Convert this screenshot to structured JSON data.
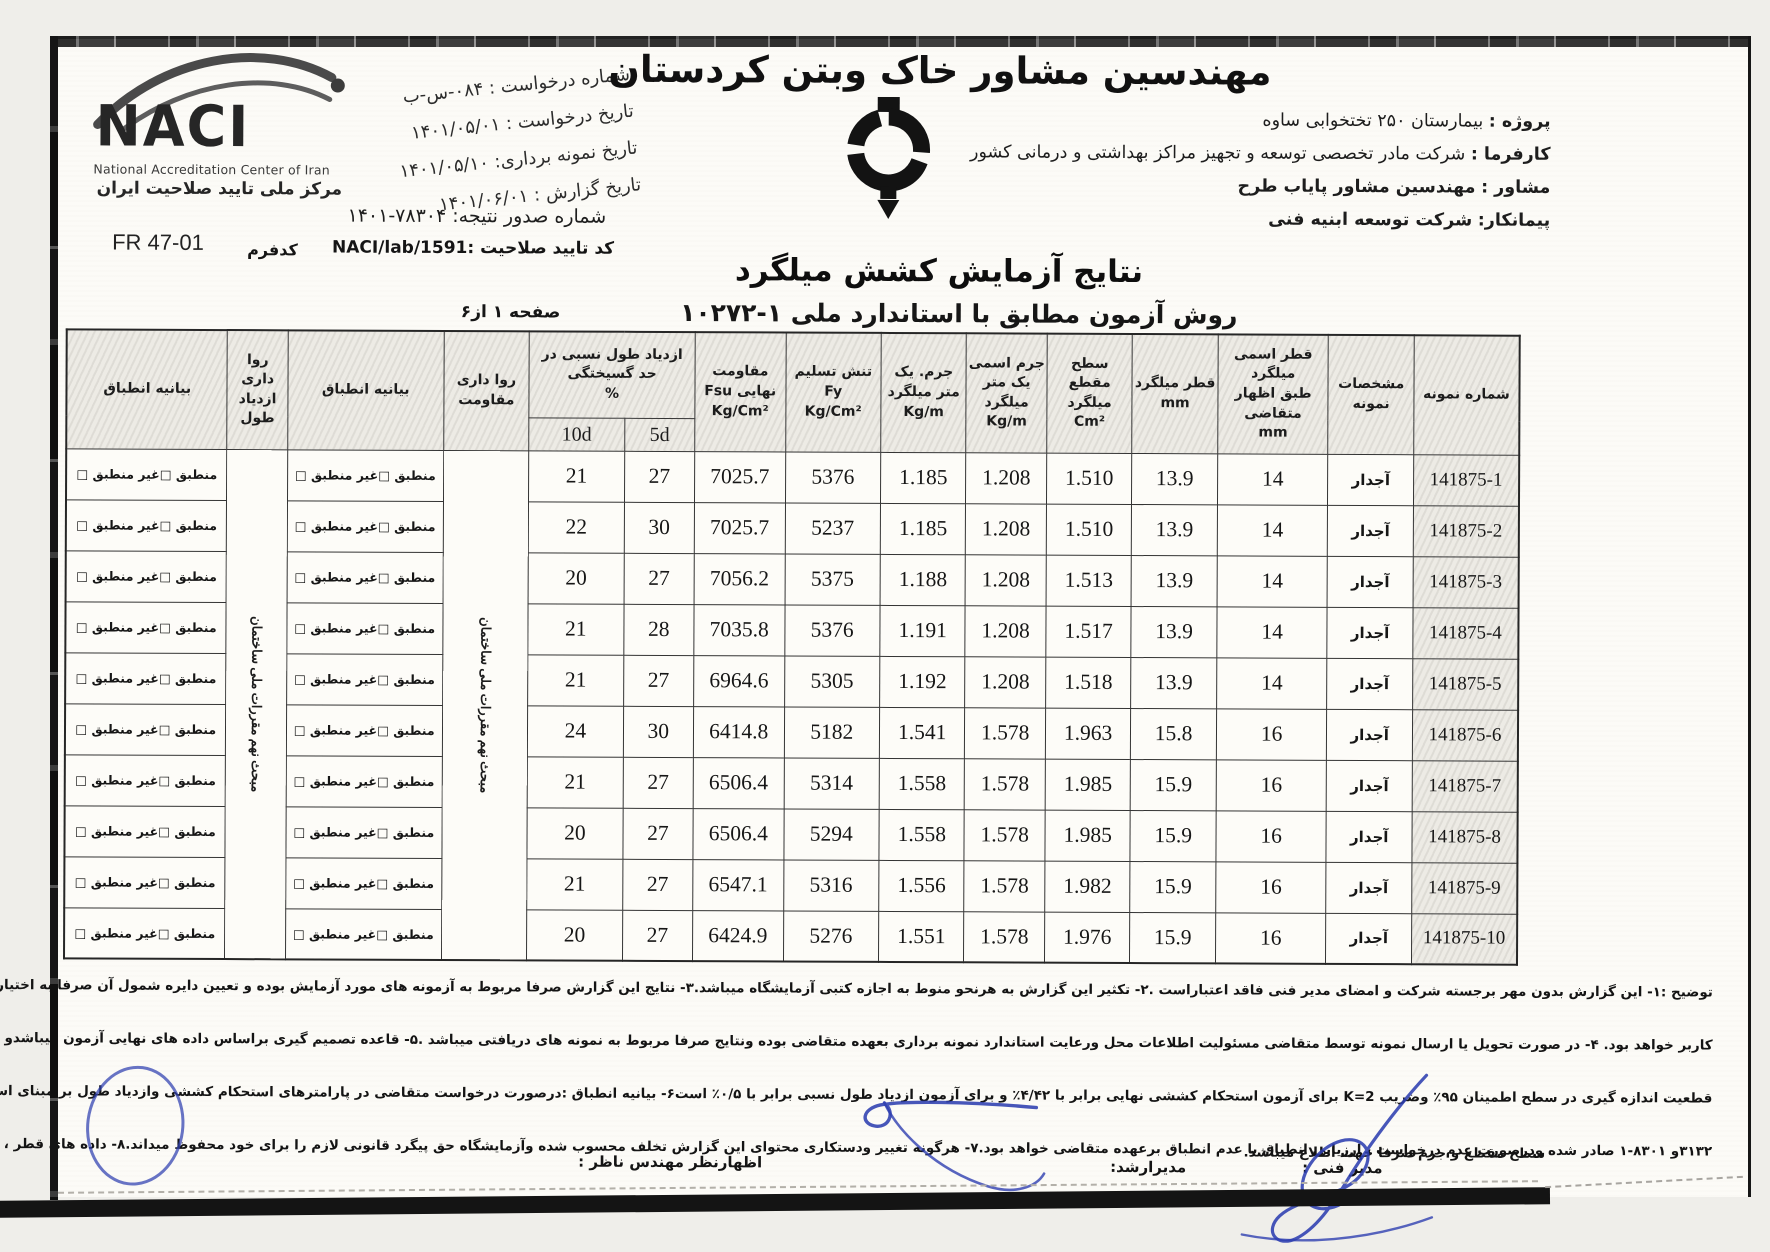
{
  "colors": {
    "ink_blue": "#2e3fb0",
    "paper": "#fcfbf7",
    "frame": "#161616",
    "header_fill": "#edebe5"
  },
  "naci_logo": {
    "acronym": "NACI",
    "subtitle_en": "National Accreditation Center of Iran",
    "subtitle_fa": "مرکز ملی تایید صلاحیت ایران"
  },
  "header": {
    "company_title": "مهندسین مشاور خاک وبتن کردستان",
    "request_no_label": "شماره درخواست :",
    "request_no_value": "۰۸۴-س-ب",
    "request_date_label": "تاریخ درخواست :",
    "request_date_value": "۱۴۰۱/۰۵/۰۱",
    "sampling_date_label": "تاریخ نمونه برداری:",
    "sampling_date_value": "۱۴۰۱/۰۵/۱۰",
    "report_date_label": "تاریخ گزارش :",
    "report_date_value": "۱۴۰۱/۰۶/۰۱",
    "result_issue_label": "شماره صدور نتیجه:",
    "result_issue_value": "۷۸۳۰۴-۱۴۰۱",
    "accreditation_label": "کد تایید صلاحیت :",
    "accreditation_value": "NACI/lab/1591",
    "form_code_label": "کدفرم",
    "form_code_value": "FR 47-01",
    "project_label": "پروژه :",
    "project_value": "بیمارستان ۲۵۰ تختخوابی ساوه",
    "client_label": "کارفرما :",
    "client_value": "شرکت مادر تخصصی توسعه و تجهیز مراکز بهداشتی و درمانی کشور",
    "consultant_label": "مشاور :",
    "consultant_value": "مهندسین مشاور پایاب طرح",
    "contractor_label": "پیمانکار:",
    "contractor_value": "شرکت توسعه ابنیه فنی"
  },
  "report": {
    "title": "نتایج آزمایش کشش میلگرد",
    "method": "روش آزمون مطابق با استاندارد ملی ۱-۱۰۲۷۲",
    "page": "صفحه ۱ از۶"
  },
  "table": {
    "h_sample": "شماره نمونه",
    "h_spec": "مشخصات\nنمونه",
    "h_nominal_dia": "قطر اسمی میلگرد\nطبق اظهار\nمتقاضی\nmm",
    "h_dia": "قطر میلگرد\nmm",
    "h_area": "سطح مقطع\nمیلگرد\nCm²",
    "h_nominal_mass": "جرم اسمی\nیک متر\nمیلگرد\nKg/m",
    "h_mass": "جرم. یک\nمتر میلگرد\nKg/m",
    "h_fy": "تنش تسلیم Fy\nKg/Cm²",
    "h_fsu": "مقاومت\nنهایی Fsu\nKg/Cm²",
    "h_elong": "ازدیاد طول نسبی در\nحد گسیختگی\n%",
    "h_5d": "5d",
    "h_10d": "10d",
    "h_tol_strength": "روا داری\nمقاومت",
    "h_conf_strength": "بیانیه انطباق",
    "h_tol_elong": "روا داری\nازدیاد\nطول",
    "h_conf_elong": "بیانیه انطباق",
    "v_regulation": "مبحث نهم مقررات ملی ساختمان",
    "conformity_cell": "منطبق □غیر منطبق □",
    "rows": [
      {
        "sample_no": "141875-1",
        "spec": "آجدار",
        "nominal_dia": "14",
        "dia": "13.9",
        "area": "1.510",
        "nominal_mass": "1.208",
        "mass": "1.185",
        "fy": "5376",
        "fsu": "7025.7",
        "e5d": "27",
        "e10d": "21"
      },
      {
        "sample_no": "141875-2",
        "spec": "آجدار",
        "nominal_dia": "14",
        "dia": "13.9",
        "area": "1.510",
        "nominal_mass": "1.208",
        "mass": "1.185",
        "fy": "5237",
        "fsu": "7025.7",
        "e5d": "30",
        "e10d": "22"
      },
      {
        "sample_no": "141875-3",
        "spec": "آجدار",
        "nominal_dia": "14",
        "dia": "13.9",
        "area": "1.513",
        "nominal_mass": "1.208",
        "mass": "1.188",
        "fy": "5375",
        "fsu": "7056.2",
        "e5d": "27",
        "e10d": "20"
      },
      {
        "sample_no": "141875-4",
        "spec": "آجدار",
        "nominal_dia": "14",
        "dia": "13.9",
        "area": "1.517",
        "nominal_mass": "1.208",
        "mass": "1.191",
        "fy": "5376",
        "fsu": "7035.8",
        "e5d": "28",
        "e10d": "21"
      },
      {
        "sample_no": "141875-5",
        "spec": "آجدار",
        "nominal_dia": "14",
        "dia": "13.9",
        "area": "1.518",
        "nominal_mass": "1.208",
        "mass": "1.192",
        "fy": "5305",
        "fsu": "6964.6",
        "e5d": "27",
        "e10d": "21"
      },
      {
        "sample_no": "141875-6",
        "spec": "آجدار",
        "nominal_dia": "16",
        "dia": "15.8",
        "area": "1.963",
        "nominal_mass": "1.578",
        "mass": "1.541",
        "fy": "5182",
        "fsu": "6414.8",
        "e5d": "30",
        "e10d": "24"
      },
      {
        "sample_no": "141875-7",
        "spec": "آجدار",
        "nominal_dia": "16",
        "dia": "15.9",
        "area": "1.985",
        "nominal_mass": "1.578",
        "mass": "1.558",
        "fy": "5314",
        "fsu": "6506.4",
        "e5d": "27",
        "e10d": "21"
      },
      {
        "sample_no": "141875-8",
        "spec": "آجدار",
        "nominal_dia": "16",
        "dia": "15.9",
        "area": "1.985",
        "nominal_mass": "1.578",
        "mass": "1.558",
        "fy": "5294",
        "fsu": "6506.4",
        "e5d": "27",
        "e10d": "20"
      },
      {
        "sample_no": "141875-9",
        "spec": "آجدار",
        "nominal_dia": "16",
        "dia": "15.9",
        "area": "1.982",
        "nominal_mass": "1.578",
        "mass": "1.556",
        "fy": "5316",
        "fsu": "6547.1",
        "e5d": "27",
        "e10d": "21"
      },
      {
        "sample_no": "141875-10",
        "spec": "آجدار",
        "nominal_dia": "16",
        "dia": "15.9",
        "area": "1.976",
        "nominal_mass": "1.578",
        "mass": "1.551",
        "fy": "5276",
        "fsu": "6424.9",
        "e5d": "27",
        "e10d": "20"
      }
    ]
  },
  "notes": {
    "lines": [
      "توضیح :۱- این گزارش بدون مهر برجسته شرکت و امضای مدیر فنی فاقد اعتباراست .۲- تکثیر این گزارش به هرنحو منوط به اجازه کتبی آزمایشگاه میباشد.۳- نتایج این گزارش صرفا مربوط به آزمونه های مورد آزمایش بوده و تعیین دایره شمول آن صرفا به اختیار",
      "کاربر خواهد بود. ۴- در صورت تحویل یا ارسال نمونه توسط متقاضی مسئولیت اطلاعات محل ورعایت استاندارد نمونه برداری بعهده متقاضی بوده ونتایج صرفا مربوط به نمونه های دریافتی میباشد .۵- قاعده تصمیم گیری براساس داده های نهایی آزمون میباشدو عدم",
      "قطعیت اندازه گیری در سطح اطمینان ۹۵٪ وضریب K=2 برای آزمون استحکام کششی نهایی برابر با ۴/۴۲٪ و برای آزمون ازدیاد طول نسبی برابر با ۰/۵٪ است۶- بیانیه انطباق :درصورت درخواست متقاضی در پارامترهای استحکام کششی وازدیاد طول بر مبنای استاندارد ملی",
      "۳۱۳۲و ۸۳۰۱-۱ صادر شده ودرصورت عدم درخواست ، ارزیابی انطباق با عدم انطباق برعهده متقاضی خواهد بود.۷- هرگونه تغییر ودستکاری محتوای این گزارش تخلف محسوب شده وآزمایشگاه حق پیگرد قانونی لازم را برای خود محفوظ میداند.۸- داده های قطر ،"
    ],
    "last_line": "سطح مقطع و جرم صرفا جهت اطلاع میباشد."
  },
  "signatures": {
    "technical_manager": "مدیر فنی :",
    "senior_manager": "مدیرارشد:",
    "supervisor_opinion": "اظهارنظر مهندس ناظر :"
  }
}
